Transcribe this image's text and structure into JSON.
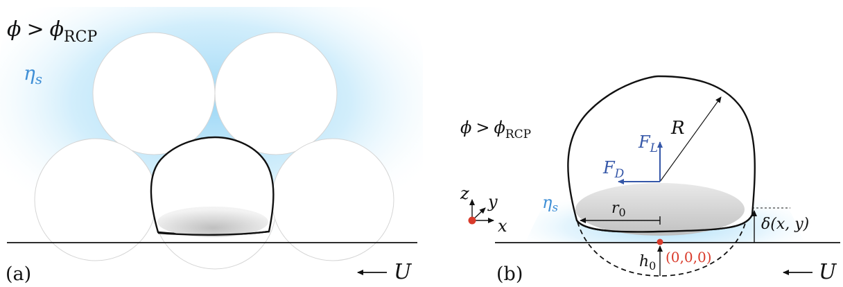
{
  "colors": {
    "accent_blue": "#3557a8",
    "eta_blue": "#3f8fd6",
    "fluid_blue": "#bfe6fb",
    "origin_red": "#d93b2b",
    "black": "#111111",
    "particle_gray": "#d0d0d0"
  },
  "panel_a": {
    "label": "(a)",
    "phi": "ϕ",
    "gt": ">",
    "phi_sub": "RCP",
    "eta": "η",
    "eta_sub": "s",
    "velocity_label": "U",
    "velocity_icon": "left-arrow-icon"
  },
  "panel_b": {
    "label": "(b)",
    "phi": "ϕ",
    "gt": ">",
    "phi_sub": "RCP",
    "eta": "η",
    "eta_sub": "s",
    "radius_label": "R",
    "lift_force": "F",
    "lift_sub": "L",
    "drag_force": "F",
    "drag_sub": "D",
    "contact_radius": "r",
    "contact_radius_sub": "0",
    "deformation_label": "δ(x, y)",
    "gap_label": "h",
    "gap_sub": "0",
    "origin_label": "(0,0,0)",
    "velocity_label": "U",
    "velocity_icon": "left-arrow-icon",
    "axes": {
      "x": "x",
      "y": "y",
      "z": "z"
    }
  }
}
